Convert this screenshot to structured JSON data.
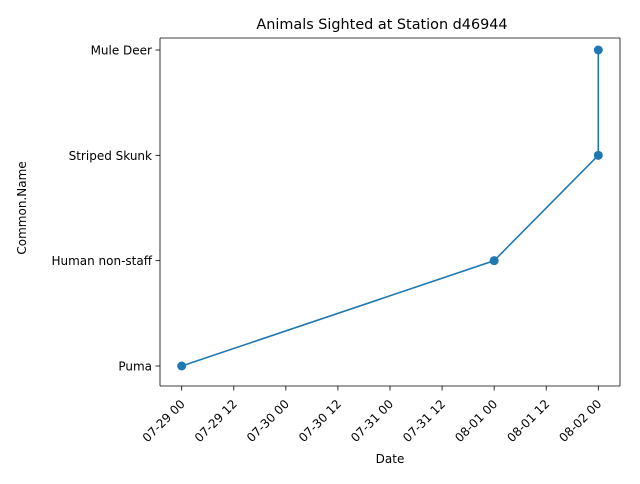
{
  "chart_data": {
    "type": "line",
    "title": "Animals Sighted at Station d46944",
    "xlabel": "Date",
    "ylabel": "Common.Name",
    "x_axis_kind": "datetime",
    "x_ticks": [
      "2023-07-29T00:00",
      "2023-07-29T12:00",
      "2023-07-30T00:00",
      "2023-07-30T12:00",
      "2023-07-31T00:00",
      "2023-07-31T12:00",
      "2023-08-01T00:00",
      "2023-08-01T12:00",
      "2023-08-02T00:00"
    ],
    "x_tick_labels": [
      "07-29 00",
      "07-29 12",
      "07-30 00",
      "07-30 12",
      "07-31 00",
      "07-31 12",
      "08-01 00",
      "08-01 12",
      "08-02 00"
    ],
    "x_range": [
      "2023-07-28T19:00",
      "2023-08-02T05:00"
    ],
    "categories": [
      "Puma",
      "Human non-staff",
      "Striped Skunk",
      "Mule Deer"
    ],
    "series": [
      {
        "color": "#1f77b4",
        "marker": "circle",
        "points": [
          {
            "x": "2023-07-29T00:00",
            "y": "Puma"
          },
          {
            "x": "2023-08-01T00:00",
            "y": "Human non-staff"
          },
          {
            "x": "2023-08-02T00:00",
            "y": "Striped Skunk"
          },
          {
            "x": "2023-08-02T00:00",
            "y": "Mule Deer"
          }
        ]
      }
    ],
    "grid": false,
    "legend": "none"
  }
}
